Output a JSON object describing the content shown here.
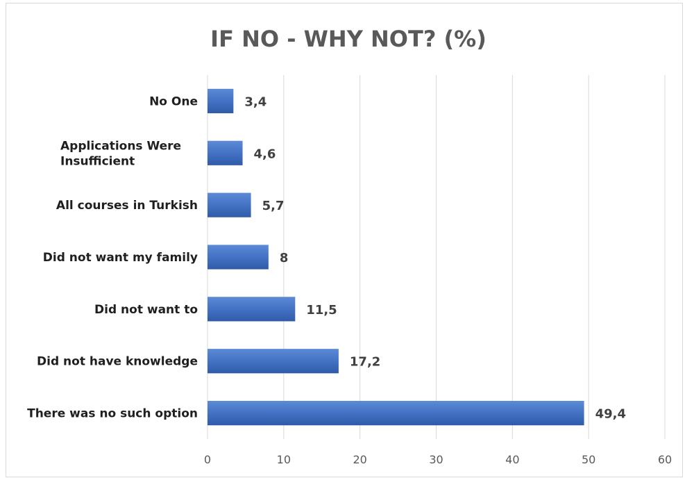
{
  "chart_data": {
    "type": "bar",
    "orientation": "horizontal",
    "title": "IF NO - WHY NOT? (%)",
    "categories": [
      "No One",
      "Applications Were Insufficient",
      "All courses in Turkish",
      "Did not want my family",
      "Did not want to",
      "Did not have knowledge",
      "There was no such option"
    ],
    "category_lines": [
      [
        "No One"
      ],
      [
        "Applications Were",
        "Insufficient"
      ],
      [
        "All courses in Turkish"
      ],
      [
        "Did not want my family"
      ],
      [
        "Did not want to"
      ],
      [
        "Did not have knowledge"
      ],
      [
        "There was no such option"
      ]
    ],
    "values": [
      3.4,
      4.6,
      5.7,
      8,
      11.5,
      17.2,
      49.4
    ],
    "value_labels": [
      "3,4",
      "4,6",
      "5,7",
      "8",
      "11,5",
      "17,2",
      "49,4"
    ],
    "xlim": [
      0,
      60
    ],
    "xticks": [
      0,
      10,
      20,
      30,
      40,
      50,
      60
    ],
    "xlabel": "",
    "ylabel": "",
    "grid": "vertical",
    "legend": "none",
    "colors": {
      "bar": "#4472c4",
      "bar_light": "#5b8ad6",
      "bar_dark": "#2f5ba8",
      "grid": "#d9d9d9",
      "title": "#595959"
    }
  }
}
